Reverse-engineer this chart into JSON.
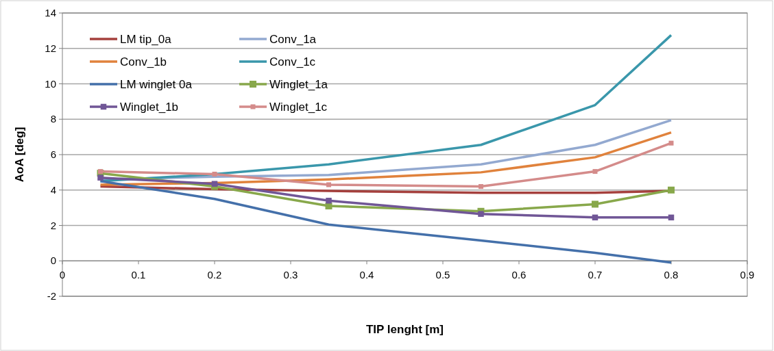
{
  "chart_data": {
    "type": "line",
    "xlabel": "TIP lenght [m]",
    "ylabel": "AoA [deg]",
    "x": [
      0.05,
      0.2,
      0.35,
      0.55,
      0.7,
      0.8
    ],
    "xlim": [
      0,
      0.9
    ],
    "xticks": [
      0,
      0.1,
      0.2,
      0.3,
      0.4,
      0.5,
      0.6,
      0.7,
      0.8,
      0.9
    ],
    "ylim": [
      -2,
      14
    ],
    "yticks": [
      -2,
      0,
      2,
      4,
      6,
      8,
      10,
      12,
      14
    ],
    "grid": "y",
    "legend": "top left",
    "series": [
      {
        "name": "LM tip_0a",
        "color": "#a5403d",
        "marker": "none",
        "values": [
          4.2,
          4.05,
          3.95,
          3.85,
          3.85,
          3.95
        ]
      },
      {
        "name": "Conv_1a",
        "color": "#93a9d0",
        "marker": "none",
        "values": [
          4.6,
          4.75,
          4.85,
          5.45,
          6.55,
          7.95
        ]
      },
      {
        "name": "Conv_1b",
        "color": "#e0823c",
        "marker": "none",
        "values": [
          4.3,
          4.4,
          4.6,
          5.0,
          5.85,
          7.25
        ]
      },
      {
        "name": "Conv_1c",
        "color": "#3a97ab",
        "marker": "none",
        "values": [
          4.5,
          4.9,
          5.45,
          6.55,
          8.8,
          12.75
        ]
      },
      {
        "name": "LM winglet 0a",
        "color": "#4470aa",
        "marker": "none",
        "values": [
          4.5,
          3.5,
          2.05,
          1.15,
          0.45,
          -0.1
        ]
      },
      {
        "name": "Winglet_1a",
        "color": "#88a84b",
        "marker": "square",
        "values": [
          4.95,
          4.2,
          3.1,
          2.8,
          3.2,
          4.0
        ]
      },
      {
        "name": "Winglet_1b",
        "color": "#705696",
        "marker": "square",
        "values": [
          4.7,
          4.35,
          3.4,
          2.65,
          2.45,
          2.45
        ]
      },
      {
        "name": "Winglet_1c",
        "color": "#d48b8a",
        "marker": "square",
        "values": [
          5.05,
          4.9,
          4.3,
          4.2,
          5.05,
          6.65
        ]
      }
    ]
  }
}
